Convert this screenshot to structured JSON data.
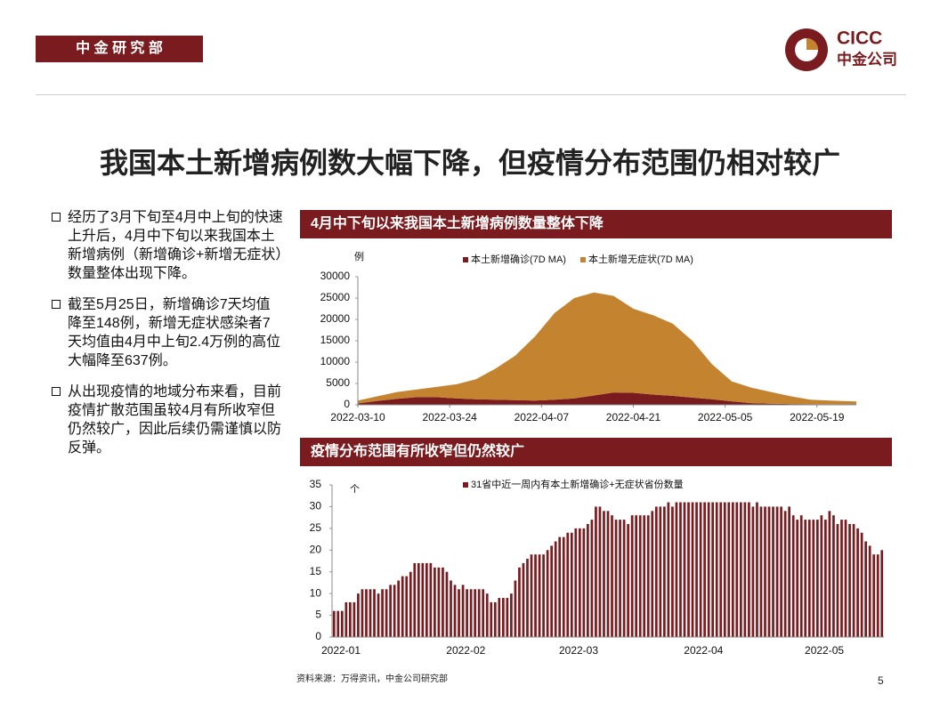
{
  "header": {
    "dept": "中 金 研 究 部",
    "logo_en": "CICC",
    "logo_cn": "中金公司"
  },
  "title": "我国本土新增病例数大幅下降，但疫情分布范围仍相对较广",
  "bullets": [
    "经历了3月下旬至4月中上旬的快速上升后，4月中下旬以来我国本土新增病例（新增确诊+新增无症状）数量整体出现下降。",
    "截至5月25日，新增确诊7天均值降至148例，新增无症状感染者7天均值由4月中上旬2.4万例的高位大幅降至637例。",
    "从出现疫情的地域分布来看，目前疫情扩散范围虽较4月有所收窄但仍然较广，因此后续仍需谨慎以防反弹。"
  ],
  "chart_data": [
    {
      "type": "area",
      "title": "4月中下旬以来我国本土新增病例数量整体下降",
      "y_label": "例",
      "x": [
        "2022-03-10",
        "2022-03-13",
        "2022-03-16",
        "2022-03-19",
        "2022-03-22",
        "2022-03-25",
        "2022-03-28",
        "2022-03-31",
        "2022-04-03",
        "2022-04-06",
        "2022-04-09",
        "2022-04-12",
        "2022-04-15",
        "2022-04-18",
        "2022-04-21",
        "2022-04-24",
        "2022-04-27",
        "2022-04-30",
        "2022-05-03",
        "2022-05-06",
        "2022-05-09",
        "2022-05-12",
        "2022-05-15",
        "2022-05-18",
        "2022-05-21",
        "2022-05-25"
      ],
      "xlim": [
        "2022-03-10",
        "2022-05-25"
      ],
      "xticks": [
        "2022-03-10",
        "2022-03-24",
        "2022-04-07",
        "2022-04-21",
        "2022-05-05",
        "2022-05-19"
      ],
      "ylim": [
        0,
        30000
      ],
      "yticks": [
        0,
        5000,
        10000,
        15000,
        20000,
        25000,
        30000
      ],
      "stacked": true,
      "series": [
        {
          "name": "本土新增确诊(7D MA)",
          "color": "#7a1c1f",
          "values": [
            300,
            900,
            1400,
            1800,
            1800,
            1500,
            1300,
            1200,
            1100,
            1000,
            1200,
            1500,
            2200,
            2900,
            2800,
            2400,
            2100,
            1700,
            1300,
            800,
            400,
            250,
            180,
            150,
            130,
            148
          ]
        },
        {
          "name": "本土新增无症状(7D MA)",
          "color": "#c4832f",
          "values": [
            700,
            1100,
            1600,
            1800,
            2400,
            3300,
            4700,
            7300,
            10400,
            15000,
            20300,
            23500,
            24100,
            22600,
            19700,
            18600,
            16900,
            13300,
            8200,
            4700,
            3600,
            2750,
            1820,
            1050,
            870,
            637
          ]
        }
      ]
    },
    {
      "type": "bar",
      "title": "疫情分布范围有所收窄但仍然较广",
      "y_label": "个",
      "categories": [
        "2022-01",
        null,
        null,
        null,
        null,
        null,
        null,
        null,
        null,
        null,
        null,
        null,
        null,
        null,
        null,
        null,
        null,
        null,
        null,
        null,
        null,
        null,
        null,
        null,
        null,
        null,
        null,
        null,
        null,
        null,
        null,
        "2022-02",
        null,
        null,
        null,
        null,
        null,
        null,
        null,
        null,
        null,
        null,
        null,
        null,
        null,
        null,
        null,
        null,
        null,
        null,
        null,
        null,
        null,
        null,
        null,
        null,
        null,
        null,
        null,
        "2022-03",
        null,
        null,
        null,
        null,
        null,
        null,
        null,
        null,
        null,
        null,
        null,
        null,
        null,
        null,
        null,
        null,
        null,
        null,
        null,
        null,
        null,
        null,
        null,
        null,
        null,
        null,
        null,
        null,
        null,
        null,
        "2022-04",
        null,
        null,
        null,
        null,
        null,
        null,
        null,
        null,
        null,
        null,
        null,
        null,
        null,
        null,
        null,
        null,
        null,
        null,
        null,
        null,
        null,
        null,
        null,
        null,
        null,
        null,
        null,
        null,
        null,
        "2022-05",
        null,
        null,
        null,
        null,
        null,
        null,
        null,
        null,
        null,
        null,
        null,
        null,
        null,
        null,
        null,
        null
      ],
      "ylim": [
        0,
        35
      ],
      "yticks": [
        0,
        5,
        10,
        15,
        20,
        25,
        30,
        35
      ],
      "series": [
        {
          "name": "31省中近一周内有本土新增确诊+无症状省份数量",
          "color": "#7a1c1f",
          "values": [
            6,
            6,
            6,
            8,
            8,
            8,
            10,
            11,
            11,
            11,
            11,
            10,
            11,
            11,
            12,
            12,
            13,
            14,
            14,
            15,
            17,
            17,
            17,
            17,
            17,
            16,
            16,
            16,
            15,
            13,
            12,
            11,
            12,
            11,
            11,
            11,
            11,
            11,
            10,
            8,
            8,
            9,
            9,
            9,
            10,
            13,
            16,
            17,
            18,
            19,
            19,
            19,
            19,
            20,
            21,
            22,
            23,
            23,
            24,
            24,
            25,
            25,
            25,
            26,
            27,
            30,
            30,
            29,
            29,
            28,
            27,
            27,
            27,
            26,
            28,
            28,
            28,
            28,
            28,
            29,
            30,
            30,
            30,
            31,
            30,
            31,
            31,
            31,
            31,
            31,
            31,
            31,
            31,
            31,
            31,
            31,
            31,
            31,
            31,
            31,
            31,
            31,
            31,
            31,
            30,
            31,
            30,
            30,
            30,
            30,
            30,
            30,
            29,
            30,
            28,
            27,
            28,
            27,
            27,
            27,
            27,
            28,
            27,
            29,
            28,
            26,
            27,
            27,
            26,
            26,
            25,
            24,
            22,
            21,
            19,
            19,
            20
          ]
        }
      ]
    }
  ],
  "source": "资料来源：万得资讯，中金公司研究部",
  "page": "5"
}
